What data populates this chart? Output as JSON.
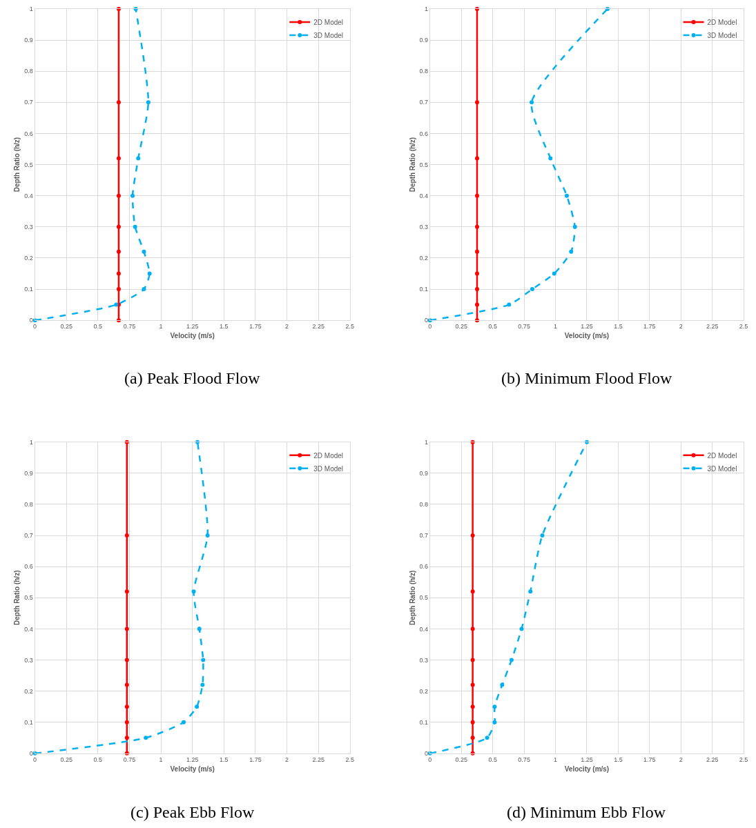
{
  "chart_data": [
    {
      "type": "line",
      "title": "(a) Peak Flood Flow",
      "xlabel": "Velocity (m/s)",
      "ylabel": "Depth Ratio (h/z)",
      "xlim": [
        0,
        2.5
      ],
      "ylim": [
        0,
        1
      ],
      "xticks": [
        0,
        0.25,
        0.5,
        0.75,
        1,
        1.25,
        1.5,
        1.75,
        2,
        2.25,
        2.5
      ],
      "yticks": [
        0,
        0.1,
        0.2,
        0.3,
        0.4,
        0.5,
        0.6,
        0.7,
        0.8,
        0.9,
        1
      ],
      "grid": true,
      "legend": "top right",
      "marker": "circle",
      "series": [
        {
          "name": "2D Model",
          "color": "#ff0000",
          "line_style": "solid",
          "x": [
            0.665,
            0.665,
            0.665,
            0.665,
            0.665,
            0.665,
            0.665,
            0.665,
            0.665,
            0.665
          ],
          "values": [
            0,
            0.05,
            0.1,
            0.15,
            0.22,
            0.3,
            0.4,
            0.52,
            0.7,
            1
          ]
        },
        {
          "name": "3D Model",
          "color": "#00b0f0",
          "line_style": "dashed",
          "x": [
            0,
            0.645,
            0.865,
            0.91,
            0.865,
            0.795,
            0.775,
            0.82,
            0.9,
            0.8
          ],
          "values": [
            0,
            0.05,
            0.1,
            0.15,
            0.22,
            0.3,
            0.4,
            0.52,
            0.7,
            1
          ]
        }
      ]
    },
    {
      "type": "line",
      "title": "(b) Minimum Flood Flow",
      "xlabel": "Velocity (m/s)",
      "ylabel": "Depth Ratio (h/z)",
      "xlim": [
        0,
        2.5
      ],
      "ylim": [
        0,
        1
      ],
      "xticks": [
        0,
        0.25,
        0.5,
        0.75,
        1,
        1.25,
        1.5,
        1.75,
        2,
        2.25,
        2.5
      ],
      "yticks": [
        0,
        0.1,
        0.2,
        0.3,
        0.4,
        0.5,
        0.6,
        0.7,
        0.8,
        0.9,
        1
      ],
      "grid": true,
      "legend": "top right",
      "marker": "circle",
      "series": [
        {
          "name": "2D Model",
          "color": "#ff0000",
          "line_style": "solid",
          "x": [
            0.375,
            0.375,
            0.375,
            0.375,
            0.375,
            0.375,
            0.375,
            0.375,
            0.375,
            0.375
          ],
          "values": [
            0,
            0.05,
            0.1,
            0.15,
            0.22,
            0.3,
            0.4,
            0.52,
            0.7,
            1
          ]
        },
        {
          "name": "3D Model",
          "color": "#00b0f0",
          "line_style": "dashed",
          "x": [
            0,
            0.63,
            0.815,
            0.99,
            1.125,
            1.155,
            1.09,
            0.96,
            0.81,
            1.415
          ],
          "values": [
            0,
            0.05,
            0.1,
            0.15,
            0.22,
            0.3,
            0.4,
            0.52,
            0.7,
            1
          ]
        }
      ]
    },
    {
      "type": "line",
      "title": "(c) Peak Ebb Flow",
      "xlabel": "Velocity (m/s)",
      "ylabel": "Depth Ratio (h/z)",
      "xlim": [
        0,
        2.5
      ],
      "ylim": [
        0,
        1
      ],
      "xticks": [
        0,
        0.25,
        0.5,
        0.75,
        1,
        1.25,
        1.5,
        1.75,
        2,
        2.25,
        2.5
      ],
      "yticks": [
        0,
        0.1,
        0.2,
        0.3,
        0.4,
        0.5,
        0.6,
        0.7,
        0.8,
        0.9,
        1
      ],
      "grid": true,
      "legend": "top right",
      "marker": "circle",
      "series": [
        {
          "name": "2D Model",
          "color": "#ff0000",
          "line_style": "solid",
          "x": [
            0.73,
            0.73,
            0.73,
            0.73,
            0.73,
            0.73,
            0.73,
            0.73,
            0.73,
            0.73
          ],
          "values": [
            0,
            0.05,
            0.1,
            0.15,
            0.22,
            0.3,
            0.4,
            0.52,
            0.7,
            1
          ]
        },
        {
          "name": "3D Model",
          "color": "#00b0f0",
          "line_style": "dashed",
          "x": [
            0,
            0.88,
            1.18,
            1.285,
            1.33,
            1.335,
            1.305,
            1.26,
            1.37,
            1.29
          ],
          "values": [
            0,
            0.05,
            0.1,
            0.15,
            0.22,
            0.3,
            0.4,
            0.52,
            0.7,
            1
          ]
        }
      ]
    },
    {
      "type": "line",
      "title": "(d) Minimum Ebb Flow",
      "xlabel": "Velocity (m/s)",
      "ylabel": "Depth Ratio (h/z)",
      "xlim": [
        0,
        2.5
      ],
      "ylim": [
        0,
        1
      ],
      "xticks": [
        0,
        0.25,
        0.5,
        0.75,
        1,
        1.25,
        1.5,
        1.75,
        2,
        2.25,
        2.5
      ],
      "yticks": [
        0,
        0.1,
        0.2,
        0.3,
        0.4,
        0.5,
        0.6,
        0.7,
        0.8,
        0.9,
        1
      ],
      "grid": true,
      "legend": "top right",
      "marker": "circle",
      "series": [
        {
          "name": "2D Model",
          "color": "#ff0000",
          "line_style": "solid",
          "x": [
            0.34,
            0.34,
            0.34,
            0.34,
            0.34,
            0.34,
            0.34,
            0.34,
            0.34,
            0.34
          ],
          "values": [
            0,
            0.05,
            0.1,
            0.15,
            0.22,
            0.3,
            0.4,
            0.52,
            0.7,
            1
          ]
        },
        {
          "name": "3D Model",
          "color": "#00b0f0",
          "line_style": "dashed",
          "x": [
            0,
            0.455,
            0.515,
            0.515,
            0.575,
            0.65,
            0.73,
            0.8,
            0.895,
            1.25
          ],
          "values": [
            0,
            0.05,
            0.1,
            0.15,
            0.22,
            0.3,
            0.4,
            0.52,
            0.7,
            1
          ]
        }
      ]
    }
  ]
}
